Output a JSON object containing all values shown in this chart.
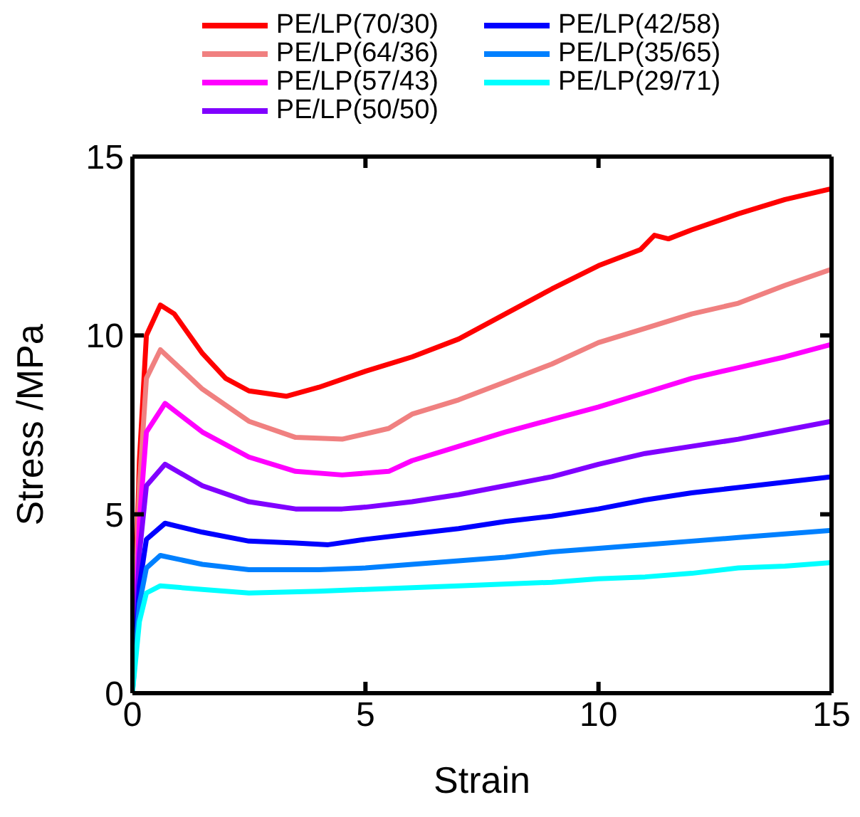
{
  "chart_data": {
    "type": "line",
    "xlabel": "Strain",
    "ylabel": "Stress /MPa",
    "xlim": [
      0,
      15
    ],
    "xticks": [
      0,
      5,
      10,
      15
    ],
    "ylim": [
      0,
      15
    ],
    "yticks": [
      0,
      5,
      10,
      15
    ],
    "legend": "top",
    "marker": "none",
    "line_style": "solid",
    "series": [
      {
        "name": "PE/LP(70/30)",
        "color": "#ff0000",
        "x": [
          0,
          0.15,
          0.3,
          0.6,
          0.9,
          1.5,
          2,
          2.5,
          3.3,
          4,
          5,
          6,
          7,
          8,
          9,
          10,
          10.9,
          11.2,
          11.5,
          12,
          13,
          14,
          15
        ],
        "values": [
          0,
          6.5,
          10,
          10.85,
          10.6,
          9.5,
          8.8,
          8.45,
          8.3,
          8.55,
          9,
          9.4,
          9.9,
          10.6,
          11.3,
          11.95,
          12.4,
          12.8,
          12.7,
          12.95,
          13.4,
          13.8,
          14.1
        ]
      },
      {
        "name": "PE/LP(64/36)",
        "color": "#f08080",
        "x": [
          0,
          0.15,
          0.3,
          0.6,
          1.5,
          2.5,
          3.5,
          4.5,
          5.5,
          6,
          7,
          8,
          9,
          10,
          11,
          12,
          13,
          14,
          15
        ],
        "values": [
          0,
          5.8,
          8.8,
          9.6,
          8.5,
          7.6,
          7.15,
          7.1,
          7.4,
          7.8,
          8.2,
          8.7,
          9.2,
          9.8,
          10.2,
          10.6,
          10.9,
          11.4,
          11.85
        ]
      },
      {
        "name": "PE/LP(57/43)",
        "color": "#ff00ff",
        "x": [
          0,
          0.15,
          0.3,
          0.7,
          1.5,
          2.5,
          3.5,
          4.5,
          5.5,
          6,
          7,
          8,
          9,
          10,
          11,
          12,
          13,
          14,
          15
        ],
        "values": [
          0,
          4.8,
          7.3,
          8.1,
          7.3,
          6.6,
          6.2,
          6.1,
          6.2,
          6.5,
          6.9,
          7.3,
          7.65,
          8,
          8.4,
          8.8,
          9.1,
          9.4,
          9.75
        ]
      },
      {
        "name": "PE/LP(50/50)",
        "color": "#8000ff",
        "x": [
          0,
          0.15,
          0.3,
          0.7,
          1.5,
          2.5,
          3.5,
          4.5,
          5,
          6,
          7,
          8,
          9,
          10,
          11,
          12,
          13,
          14,
          15
        ],
        "values": [
          0,
          3.9,
          5.8,
          6.4,
          5.8,
          5.35,
          5.15,
          5.15,
          5.2,
          5.35,
          5.55,
          5.8,
          6.05,
          6.4,
          6.7,
          6.9,
          7.1,
          7.35,
          7.6
        ]
      },
      {
        "name": "PE/LP(42/58)",
        "color": "#0000ff",
        "x": [
          0,
          0.15,
          0.3,
          0.7,
          1.5,
          2.5,
          3.5,
          4.2,
          5,
          6,
          7,
          8,
          9,
          10,
          11,
          12,
          13,
          14,
          15
        ],
        "values": [
          0,
          3,
          4.3,
          4.75,
          4.5,
          4.25,
          4.2,
          4.15,
          4.3,
          4.45,
          4.6,
          4.8,
          4.95,
          5.15,
          5.4,
          5.6,
          5.75,
          5.9,
          6.05
        ]
      },
      {
        "name": "PE/LP(35/65)",
        "color": "#0080ff",
        "x": [
          0,
          0.15,
          0.3,
          0.6,
          1.5,
          2.5,
          4,
          5,
          6,
          7,
          8,
          9,
          10,
          11,
          12,
          13,
          14,
          15
        ],
        "values": [
          0,
          2.5,
          3.5,
          3.85,
          3.6,
          3.45,
          3.45,
          3.5,
          3.6,
          3.7,
          3.8,
          3.95,
          4.05,
          4.15,
          4.25,
          4.35,
          4.45,
          4.55
        ]
      },
      {
        "name": "PE/LP(29/71)",
        "color": "#00ffff",
        "x": [
          0,
          0.15,
          0.3,
          0.6,
          1.5,
          2.5,
          4,
          5,
          7,
          9,
          10,
          11,
          12,
          13,
          14,
          15
        ],
        "values": [
          0,
          2,
          2.8,
          3,
          2.9,
          2.8,
          2.85,
          2.9,
          3,
          3.1,
          3.2,
          3.25,
          3.35,
          3.5,
          3.55,
          3.65
        ]
      }
    ]
  }
}
